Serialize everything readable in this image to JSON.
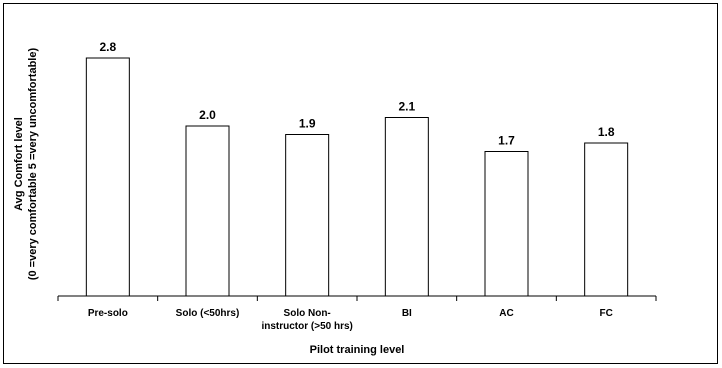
{
  "chart_data": {
    "type": "bar",
    "categories": [
      [
        "Pre-solo"
      ],
      [
        "Solo (<50hrs)"
      ],
      [
        "Solo Non-",
        "instructor (>50 hrs)"
      ],
      [
        "BI"
      ],
      [
        "AC"
      ],
      [
        "FC"
      ]
    ],
    "values": [
      2.8,
      2.0,
      1.9,
      2.1,
      1.7,
      1.8
    ],
    "data_labels": [
      "2.8",
      "2.0",
      "1.9",
      "2.1",
      "1.7",
      "1.8"
    ],
    "xlabel": "Pilot training level",
    "ylabel_lines": [
      "Avg Comfort level",
      "(0 =very comfortable 5 =very uncomfortable)"
    ],
    "ylim": [
      0,
      3.2
    ],
    "grid": false,
    "legend": "none",
    "bar_fill": "#ffffff",
    "bar_stroke": "#000000"
  }
}
